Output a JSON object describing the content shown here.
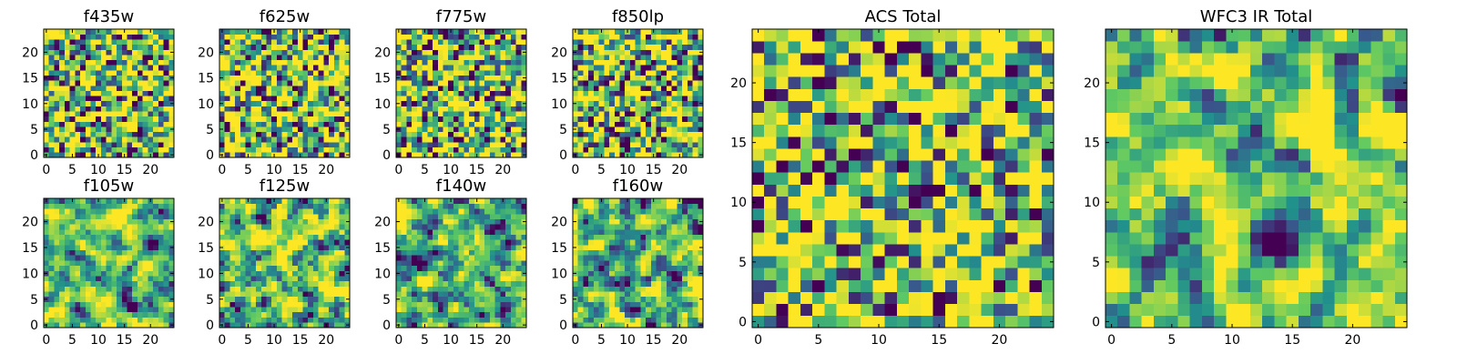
{
  "chart_data": {
    "type": "heatmap",
    "colormap": "viridis",
    "colormap_stops": [
      "#440154",
      "#3b528b",
      "#21918c",
      "#5ec962",
      "#fde725"
    ],
    "grid": false,
    "seed_note": "values are per-pixel intensities in 0..1 on a 25x25 grid",
    "panels": [
      {
        "title": "f435w",
        "x_ticks": [
          "0",
          "5",
          "10",
          "15",
          "20"
        ],
        "y_ticks": [
          "0",
          "5",
          "10",
          "15",
          "20"
        ],
        "ylim": [
          -0.5,
          24.5
        ],
        "xlim": [
          -0.5,
          24.5
        ],
        "bias": 0.62,
        "contrast": 0.28,
        "seed": 11,
        "smooth": 0
      },
      {
        "title": "f625w",
        "x_ticks": [
          "0",
          "5",
          "10",
          "15",
          "20"
        ],
        "y_ticks": [
          "0",
          "5",
          "10",
          "15",
          "20"
        ],
        "ylim": [
          -0.5,
          24.5
        ],
        "xlim": [
          -0.5,
          24.5
        ],
        "bias": 0.63,
        "contrast": 0.3,
        "seed": 23,
        "smooth": 0
      },
      {
        "title": "f775w",
        "x_ticks": [
          "0",
          "5",
          "10",
          "15",
          "20"
        ],
        "y_ticks": [
          "0",
          "5",
          "10",
          "15",
          "20"
        ],
        "ylim": [
          -0.5,
          24.5
        ],
        "xlim": [
          -0.5,
          24.5
        ],
        "bias": 0.62,
        "contrast": 0.3,
        "seed": 37,
        "smooth": 0
      },
      {
        "title": "f850lp",
        "x_ticks": [
          "0",
          "5",
          "10",
          "15",
          "20"
        ],
        "y_ticks": [
          "0",
          "5",
          "10",
          "15",
          "20"
        ],
        "ylim": [
          -0.5,
          24.5
        ],
        "xlim": [
          -0.5,
          24.5
        ],
        "bias": 0.63,
        "contrast": 0.29,
        "seed": 41,
        "smooth": 0
      },
      {
        "title": "f105w",
        "x_ticks": [
          "0",
          "5",
          "10",
          "15",
          "20"
        ],
        "y_ticks": [
          "0",
          "5",
          "10",
          "15",
          "20"
        ],
        "ylim": [
          -0.5,
          24.5
        ],
        "xlim": [
          -0.5,
          24.5
        ],
        "bias": 0.66,
        "contrast": 0.32,
        "seed": 53,
        "smooth": 1
      },
      {
        "title": "f125w",
        "x_ticks": [
          "0",
          "5",
          "10",
          "15",
          "20"
        ],
        "y_ticks": [
          "0",
          "5",
          "10",
          "15",
          "20"
        ],
        "ylim": [
          -0.5,
          24.5
        ],
        "xlim": [
          -0.5,
          24.5
        ],
        "bias": 0.64,
        "contrast": 0.33,
        "seed": 67,
        "smooth": 1
      },
      {
        "title": "f140w",
        "x_ticks": [
          "0",
          "5",
          "10",
          "15",
          "20"
        ],
        "y_ticks": [
          "0",
          "5",
          "10",
          "15",
          "20"
        ],
        "ylim": [
          -0.5,
          24.5
        ],
        "xlim": [
          -0.5,
          24.5
        ],
        "bias": 0.66,
        "contrast": 0.32,
        "seed": 71,
        "smooth": 1
      },
      {
        "title": "f160w",
        "x_ticks": [
          "0",
          "5",
          "10",
          "15",
          "20"
        ],
        "y_ticks": [
          "0",
          "5",
          "10",
          "15",
          "20"
        ],
        "ylim": [
          -0.5,
          24.5
        ],
        "xlim": [
          -0.5,
          24.5
        ],
        "bias": 0.65,
        "contrast": 0.33,
        "seed": 83,
        "smooth": 1
      },
      {
        "title": "ACS Total",
        "x_ticks": [
          "0",
          "5",
          "10",
          "15",
          "20"
        ],
        "y_ticks": [
          "0",
          "5",
          "10",
          "15",
          "20"
        ],
        "ylim": [
          -0.5,
          24.5
        ],
        "xlim": [
          -0.5,
          24.5
        ],
        "bias": 0.62,
        "contrast": 0.3,
        "seed": 97,
        "smooth": 0
      },
      {
        "title": "WFC3 IR Total",
        "x_ticks": [
          "0",
          "5",
          "10",
          "15",
          "20"
        ],
        "y_ticks": [
          "0",
          "5",
          "10",
          "15",
          "20"
        ],
        "ylim": [
          -0.5,
          24.5
        ],
        "xlim": [
          -0.5,
          24.5
        ],
        "bias": 0.66,
        "contrast": 0.32,
        "seed": 109,
        "smooth": 1
      }
    ]
  }
}
